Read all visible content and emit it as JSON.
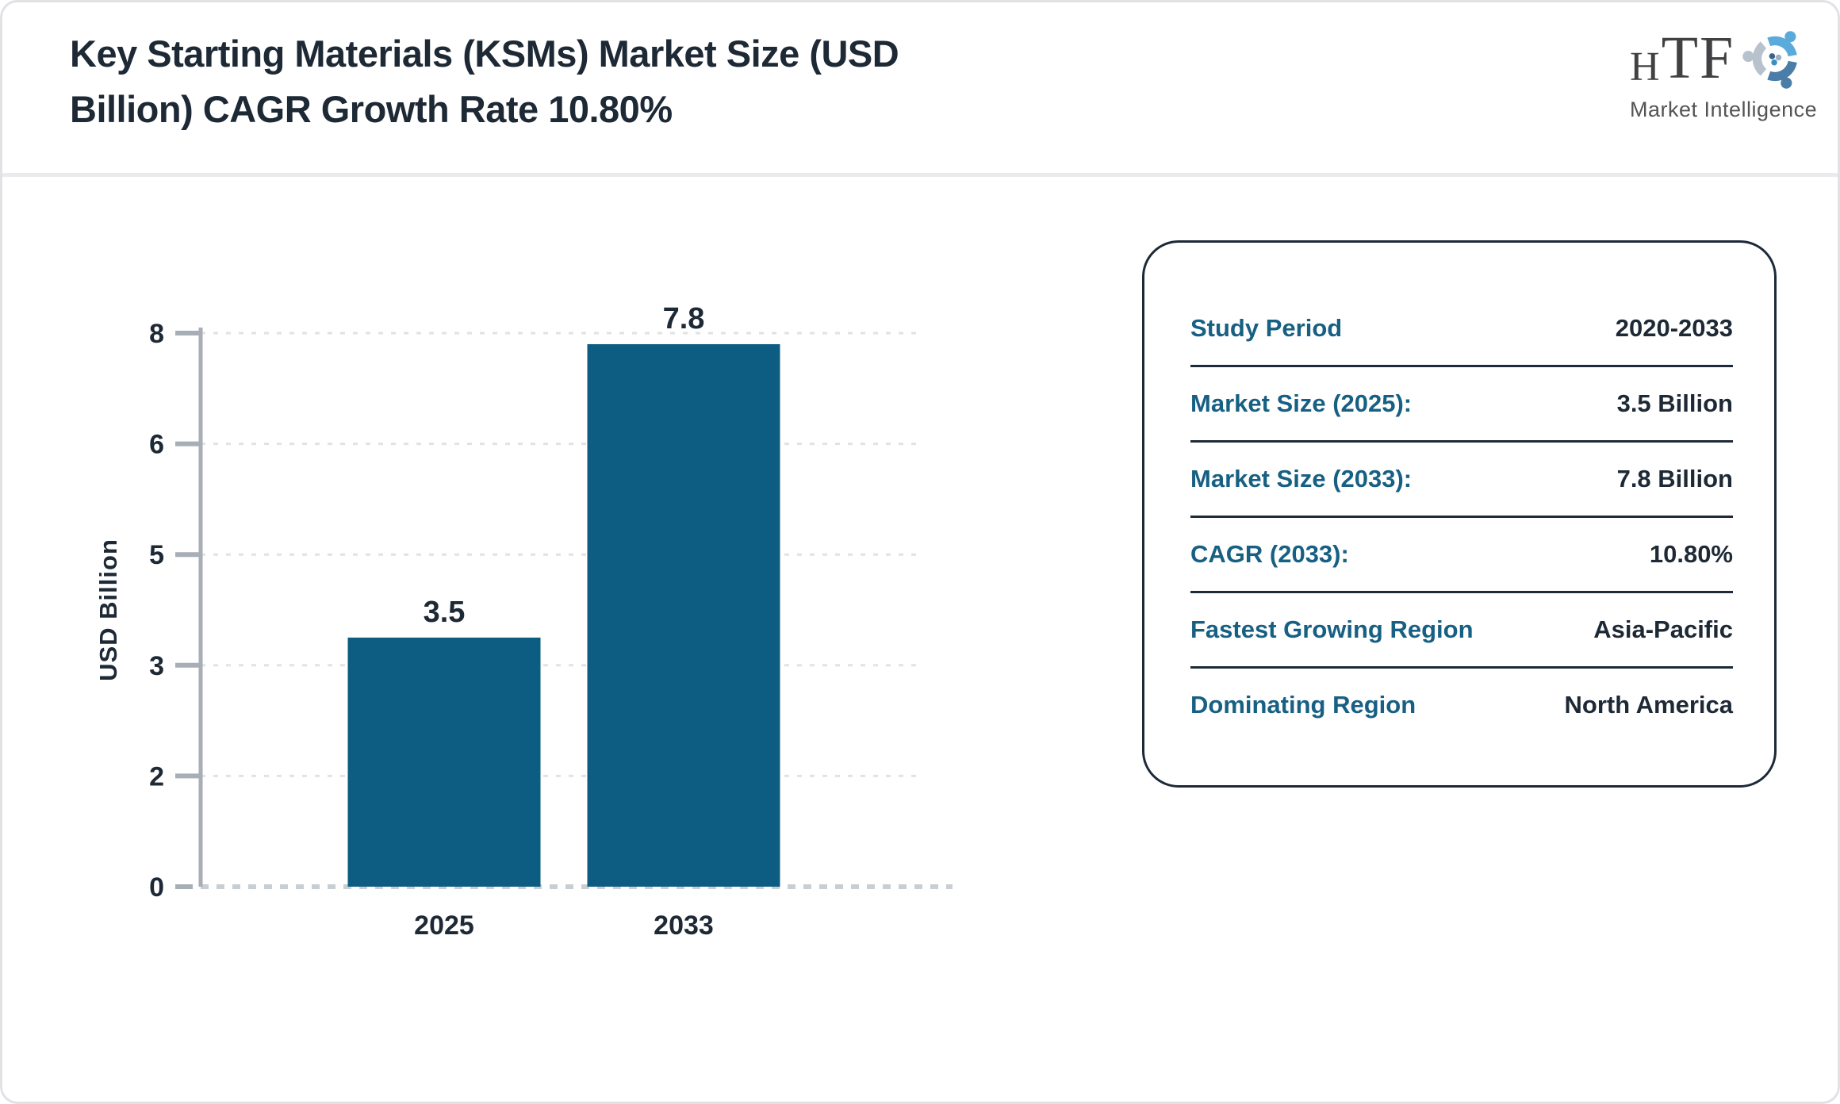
{
  "header": {
    "title_lines": [
      "Key Starting Materials (KSMs) Market Size (USD",
      "Billion) CAGR Growth Rate 10.80%"
    ]
  },
  "logo": {
    "acronym_first": "H",
    "acronym_rest": "TF",
    "tagline": "Market Intelligence",
    "colors": {
      "light_blue": "#5AABDB",
      "steel_blue": "#4A7EA8",
      "gray_blue": "#B8C2CD"
    }
  },
  "chart_data": {
    "type": "bar",
    "title": "Key Starting Materials (KSMs) Market Size (USD Billion) CAGR Growth Rate 10.80%",
    "categories": [
      "2025",
      "2033"
    ],
    "values": [
      3.5,
      7.8
    ],
    "bar_labels": [
      "3.5",
      "7.8"
    ],
    "xlabel": "",
    "ylabel": "USD Billion",
    "yticks": [
      0,
      2,
      3,
      5,
      6,
      8
    ],
    "ylim": [
      0,
      8
    ],
    "grid": "horizontal-dashed",
    "legend_position": "none",
    "bar_color": "#0D5C81"
  },
  "panel": {
    "rows": [
      {
        "label": "Study Period",
        "value": "2020-2033"
      },
      {
        "label": "Market Size (2025):",
        "value": "3.5 Billion"
      },
      {
        "label": "Market Size (2033):",
        "value": "7.8 Billion"
      },
      {
        "label": "CAGR (2033):",
        "value": "10.80%"
      },
      {
        "label": "Fastest Growing Region",
        "value": "Asia-Pacific"
      },
      {
        "label": "Dominating Region",
        "value": "North America"
      }
    ]
  },
  "colors": {
    "navy_text": "#1E2936",
    "teal_label": "#176083",
    "bar": "#0D5C81",
    "panel_border": "#1D2939",
    "axis_gray": "#A7AEB6",
    "gridline": "#E2E2E2",
    "divider": "#E9EAED",
    "page_border": "#E1E2E6"
  }
}
